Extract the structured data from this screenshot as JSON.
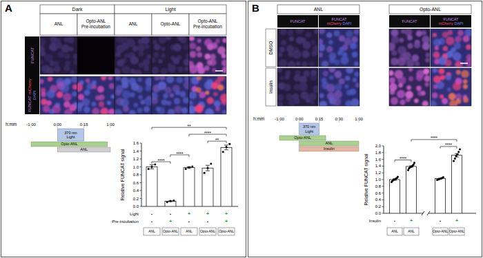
{
  "chart_data": [
    {
      "type": "bar",
      "ylabel": "Relative FUNCAT signal",
      "categories": [
        "ANL",
        "Opto-ANL",
        "ANL",
        "Opto-ANL",
        "Opto-ANL"
      ],
      "values": [
        1.0,
        0.13,
        0.98,
        0.97,
        1.49
      ],
      "errors": [
        0.05,
        0.01,
        0.02,
        0.07,
        0.06
      ],
      "points": [
        [
          0.95,
          1.0,
          1.06
        ],
        [
          0.11,
          0.14,
          0.15
        ],
        [
          0.95,
          0.99,
          1.01
        ],
        [
          0.85,
          0.97,
          1.08
        ],
        [
          1.38,
          1.5,
          1.58
        ]
      ],
      "color": "#ffffff",
      "ylim": [
        0,
        1.6
      ],
      "yticks": [
        {
          "value": 0,
          "label": "0.0"
        },
        0.2,
        0.4,
        0.6,
        0.8,
        {
          "value": 1,
          "label": "1.0"
        },
        1.2,
        1.4,
        1.6
      ],
      "grid": false,
      "conditions": [
        {
          "label": "Light",
          "values": [
            "-",
            "-",
            "+",
            "+",
            "+"
          ]
        },
        {
          "label": "Pre-incubation",
          "values": [
            "-",
            "+",
            "-",
            "-",
            "+"
          ]
        }
      ],
      "significance": [
        {
          "from": 0,
          "to": 1,
          "label": "****"
        },
        {
          "from": 1,
          "to": 2,
          "label": "****"
        },
        {
          "from": 3,
          "to": 4,
          "label": "**"
        },
        {
          "from": 2,
          "to": 4,
          "label": "****"
        },
        {
          "from": 0,
          "to": 4,
          "label": "**"
        }
      ]
    },
    {
      "type": "bar",
      "ylabel": "Relative FUNCAT signal",
      "categories": [
        "ANL",
        "ANL",
        "Opto-ANL",
        "Opto-ANL"
      ],
      "values": [
        1.0,
        1.39,
        1.03,
        1.72
      ],
      "errors": [
        0.02,
        0.02,
        0.01,
        0.05
      ],
      "points": [
        [
          0.93,
          0.96,
          0.98,
          1.0,
          1.0,
          1.02,
          1.03,
          1.05,
          1.08
        ],
        [
          1.28,
          1.33,
          1.35,
          1.37,
          1.38,
          1.4,
          1.42,
          1.45,
          1.5
        ],
        [
          0.99,
          1.0,
          1.01,
          1.02,
          1.03,
          1.04,
          1.05,
          1.07
        ],
        [
          1.55,
          1.62,
          1.7,
          1.75,
          1.82,
          1.9
        ]
      ],
      "color": "#ffffff",
      "ylim": [
        0,
        2
      ],
      "yticks": [
        {
          "value": 0,
          "label": "0.0"
        },
        0.2,
        0.4,
        0.6,
        0.8,
        {
          "value": 1,
          "label": "1.0"
        },
        1.2,
        1.4,
        1.6,
        1.8,
        {
          "value": 2,
          "label": "2.0"
        }
      ],
      "grid": false,
      "conditions": [
        {
          "label": "Insulin",
          "values": [
            "-",
            "+",
            "-",
            "+"
          ]
        }
      ],
      "significance": [
        {
          "from": 0,
          "to": 1,
          "label": "****"
        },
        {
          "from": 2,
          "to": 3,
          "label": "****"
        },
        {
          "from": 1,
          "to": 3,
          "label": "****"
        }
      ]
    }
  ],
  "figure": {
    "panel_a": {
      "label": "A",
      "groups": [
        {
          "label": "Dark",
          "span": 2
        },
        {
          "label": "Light",
          "span": 3
        }
      ],
      "columns": [
        "ANL",
        "Opto-ANL Pre-incubation",
        "ANL",
        "Opto-ANL",
        "Opto-ANL Pre-incubation"
      ],
      "row_labels": [
        [
          "FUNCAT"
        ],
        [
          "FUNCAT",
          "mCherry",
          "DAPI"
        ]
      ],
      "timeline": {
        "axis_label": "h:mm",
        "ticks": [
          {
            "value": -60,
            "label": "-1:00"
          },
          {
            "value": 0,
            "label": "0:00"
          },
          {
            "value": 15,
            "label": "0:15"
          },
          {
            "value": 60,
            "label": "1:00"
          }
        ],
        "light": {
          "label": "370 nm Light",
          "start": 0,
          "end": 15,
          "color": "#b4c7e7"
        },
        "bars": [
          {
            "label": "Opto-ANL",
            "start": -60,
            "end": 55,
            "color": "#a9d18e"
          },
          {
            "label": "ANL",
            "start": 0,
            "end": 60,
            "color": "#cfcfcf"
          }
        ]
      }
    },
    "panel_b": {
      "label": "B",
      "groups": [
        {
          "label": "ANL",
          "span": 2
        },
        {
          "label": "Opto-ANL",
          "span": 2
        }
      ],
      "columns": [
        [
          "FUNCAT"
        ],
        [
          "FUNCAT",
          "mCherry",
          "DAPI"
        ],
        [
          "FUNCAT"
        ],
        [
          "FUNCAT",
          "mCherry",
          "DAPI"
        ]
      ],
      "row_labels": [
        "DMSO",
        "Insulin"
      ],
      "timeline": {
        "axis_label": "h:mm",
        "ticks": [
          {
            "value": -60,
            "label": "-1:00"
          },
          {
            "value": 0,
            "label": "0:00"
          },
          {
            "value": 15,
            "label": "0:15"
          },
          {
            "value": 30,
            "label": "0:30"
          },
          {
            "value": 60,
            "label": "1:00"
          }
        ],
        "light": {
          "label": "370 nm Light",
          "start": 0,
          "end": 15,
          "color": "#b4c7e7"
        },
        "bars": [
          {
            "label": "Opto-ANL",
            "start": -60,
            "end": 20,
            "color": "#a9d18e"
          },
          {
            "label": "ANL",
            "start": 0,
            "end": 60,
            "color": "#a9d18e"
          },
          {
            "label": "Insulin",
            "start": 0,
            "end": 60,
            "color": "#e8b4a0"
          }
        ]
      }
    }
  }
}
